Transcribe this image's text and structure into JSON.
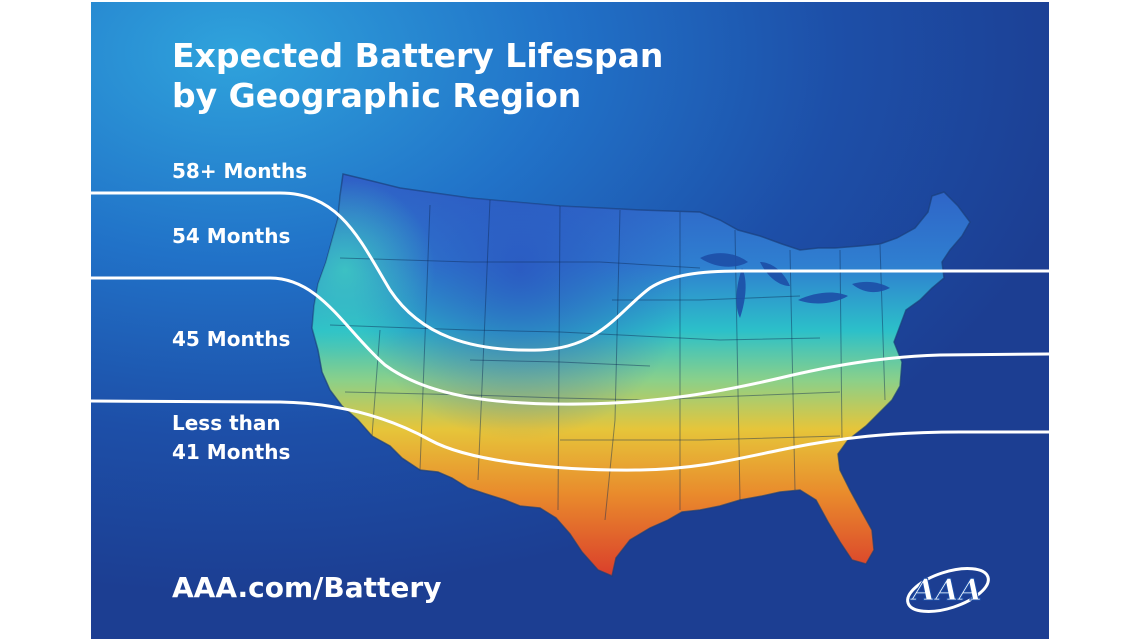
{
  "title_line1": "Expected Battery Lifespan",
  "title_line2": "by Geographic Region",
  "bands": [
    {
      "label": "58+ Months"
    },
    {
      "label": "54 Months"
    },
    {
      "label": "45 Months"
    },
    {
      "label_line1": "Less than",
      "label_line2": "41 Months"
    }
  ],
  "website": "AAA.com/Battery",
  "logo_text": "AAA",
  "colors": {
    "background_top": "#2fa3dc",
    "background_bottom": "#1c3e92",
    "cold_region": "#2f66c9",
    "mid_region": "#2cc3c8",
    "warm_region": "#e8c332",
    "hot_region": "#dc3d2a",
    "band_lines": "#ffffff",
    "text": "#ffffff"
  }
}
